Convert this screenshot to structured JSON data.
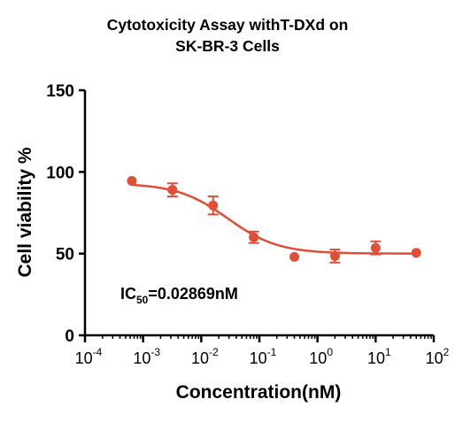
{
  "chart_data": {
    "type": "scatter",
    "title": [
      "Cytotoxicity Assay withT-DXd on",
      "SK-BR-3 Cells"
    ],
    "xlabel": "Concentration(nM)",
    "ylabel": "Cell viability %",
    "x_scale": "log10",
    "xlim": [
      0.0001,
      100
    ],
    "ylim": [
      0,
      150
    ],
    "x_ticks": [
      {
        "base": "10",
        "exp": "-4",
        "value": 0.0001
      },
      {
        "base": "10",
        "exp": "-3",
        "value": 0.001
      },
      {
        "base": "10",
        "exp": "-2",
        "value": 0.01
      },
      {
        "base": "10",
        "exp": "-1",
        "value": 0.1
      },
      {
        "base": "10",
        "exp": "0",
        "value": 1
      },
      {
        "base": "10",
        "exp": "1",
        "value": 10
      },
      {
        "base": "10",
        "exp": "2",
        "value": 100
      }
    ],
    "y_ticks": [
      "0",
      "50",
      "100",
      "150"
    ],
    "grid": false,
    "color": "#E04E36",
    "points": [
      {
        "x": 0.00064,
        "y": 94.5,
        "err": 0
      },
      {
        "x": 0.0032,
        "y": 89,
        "err": 4
      },
      {
        "x": 0.016,
        "y": 79.5,
        "err": 5.5
      },
      {
        "x": 0.08,
        "y": 60,
        "err": 3.5
      },
      {
        "x": 0.4,
        "y": 48,
        "err": 0
      },
      {
        "x": 2,
        "y": 48.5,
        "err": 4
      },
      {
        "x": 10,
        "y": 53.5,
        "err": 4
      },
      {
        "x": 50,
        "y": 50.5,
        "err": 0
      }
    ],
    "fit": {
      "top": 93,
      "bottom": 50,
      "log_ic50": -1.542,
      "hill": 1.0
    },
    "annotation": {
      "prefix": "IC",
      "subscript": "50",
      "text": "=0.02869nM"
    }
  }
}
